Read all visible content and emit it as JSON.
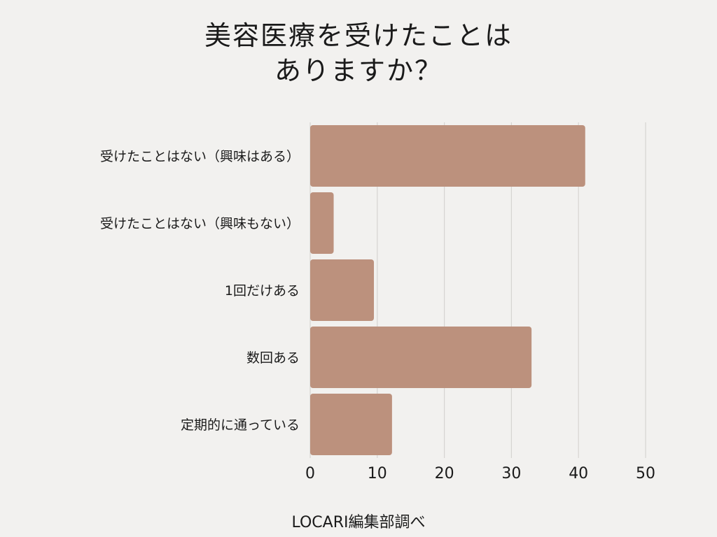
{
  "chart_data": {
    "type": "bar",
    "orientation": "horizontal",
    "title_lines": [
      "美容医療を受けたことは",
      "ありますか？"
    ],
    "categories": [
      "受けたことはない（興味はある）",
      "受けたことはない（興味もない）",
      "1回だけある",
      "数回ある",
      "定期的に通っている"
    ],
    "values": [
      41,
      3.5,
      9.5,
      33,
      12.2
    ],
    "xlim": [
      0,
      50
    ],
    "xticks": [
      0,
      10,
      20,
      30,
      40,
      50
    ],
    "grid": true,
    "bar_color": "#bc917d",
    "grid_color": "#d6d4d1"
  },
  "source": "LOCARI編集部調べ"
}
